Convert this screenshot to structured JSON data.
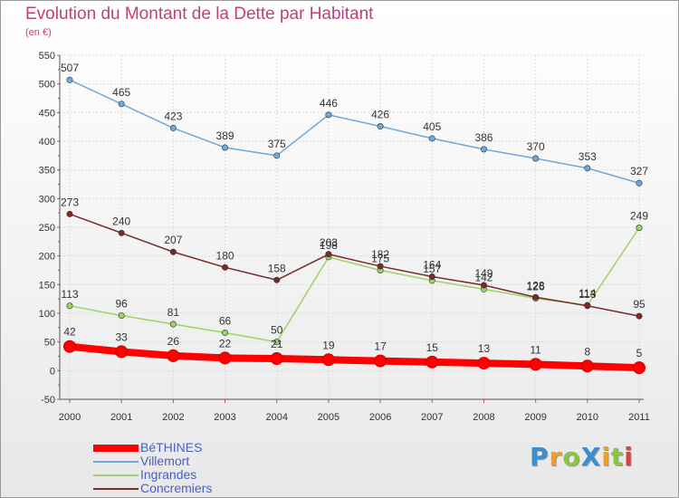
{
  "header": {
    "title": "Evolution du Montant de la Dette par Habitant",
    "subtitle": "(en €)"
  },
  "logo": {
    "text": "ProXiti",
    "letters": [
      {
        "char": "P",
        "color": "#3a8fd0"
      },
      {
        "char": "r",
        "color": "#f0a020"
      },
      {
        "char": "o",
        "color": "#8cc63f"
      },
      {
        "char": "X",
        "color": "#3a8fd0"
      },
      {
        "char": "i",
        "color": "#f0a020"
      },
      {
        "char": "t",
        "color": "#8cc63f"
      },
      {
        "char": "i",
        "color": "#e04040"
      }
    ]
  },
  "chart_data": {
    "type": "line",
    "title": "Evolution du Montant de la Dette par Habitant",
    "subtitle": "(en €)",
    "xlabel": "",
    "ylabel": "",
    "x": [
      "2000",
      "2001",
      "2002",
      "2003",
      "2004",
      "2005",
      "2006",
      "2007",
      "2008",
      "2009",
      "2010",
      "2011"
    ],
    "ylim": [
      -50,
      550
    ],
    "yticks": [
      -50,
      0,
      50,
      100,
      150,
      200,
      250,
      300,
      350,
      400,
      450,
      500,
      550
    ],
    "grid": true,
    "legend_position": "bottom-left",
    "series": [
      {
        "name": "BéTHINES",
        "color": "#ff0000",
        "values": [
          42,
          33,
          26,
          22,
          21,
          19,
          17,
          15,
          13,
          11,
          8,
          5
        ]
      },
      {
        "name": "Villemort",
        "color": "#6fa8dc",
        "values": [
          507,
          465,
          423,
          389,
          375,
          446,
          426,
          405,
          386,
          370,
          353,
          327
        ]
      },
      {
        "name": "Ingrandes",
        "color": "#9ed36a",
        "values": [
          113,
          96,
          81,
          66,
          50,
          198,
          175,
          157,
          142,
          126,
          114,
          249
        ]
      },
      {
        "name": "Concremiers",
        "color": "#7a2a2a",
        "values": [
          273,
          240,
          207,
          180,
          158,
          203,
          182,
          164,
          149,
          128,
          113,
          95
        ]
      }
    ]
  }
}
